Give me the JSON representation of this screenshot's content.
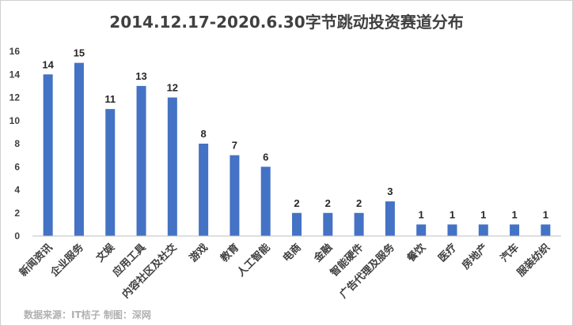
{
  "chart_data": {
    "type": "bar",
    "title": "2014.12.17-2020.6.30字节跳动投资赛道分布",
    "categories": [
      "新闻资讯",
      "企业服务",
      "文娱",
      "应用工具",
      "内容社区及社交",
      "游戏",
      "教育",
      "人工智能",
      "电商",
      "金融",
      "智能硬件",
      "广告代理及服务",
      "餐饮",
      "医疗",
      "房地产",
      "汽车",
      "服装纺织"
    ],
    "values": [
      14,
      15,
      11,
      13,
      12,
      8,
      7,
      6,
      2,
      2,
      2,
      3,
      1,
      1,
      1,
      1,
      1
    ],
    "ylim": [
      0,
      16
    ],
    "yticks": [
      0,
      2,
      4,
      6,
      8,
      10,
      12,
      14,
      16
    ],
    "grid": false,
    "bar_color": "#4472c4",
    "source_note": "数据来源：IT桔子 制图：深网"
  }
}
